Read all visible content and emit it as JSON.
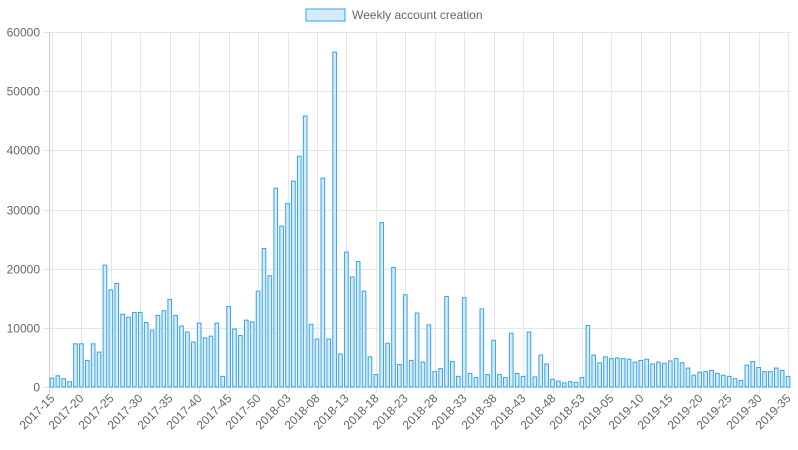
{
  "chart_data": {
    "type": "bar",
    "legend": {
      "label": "Weekly account creation",
      "position": "top"
    },
    "ylim": [
      0,
      60000
    ],
    "y_ticks": [
      0,
      10000,
      20000,
      30000,
      40000,
      50000,
      60000
    ],
    "grid": true,
    "colors": {
      "bar_fill": "#d6ecfa",
      "bar_stroke": "#36a2eb",
      "grid": "#e6e6e6",
      "axis_text": "#666666"
    },
    "categories": [
      "2017-15",
      "2017-16",
      "2017-17",
      "2017-18",
      "2017-19",
      "2017-20",
      "2017-21",
      "2017-22",
      "2017-23",
      "2017-24",
      "2017-25",
      "2017-26",
      "2017-27",
      "2017-28",
      "2017-29",
      "2017-30",
      "2017-31",
      "2017-32",
      "2017-33",
      "2017-34",
      "2017-35",
      "2017-36",
      "2017-37",
      "2017-38",
      "2017-39",
      "2017-40",
      "2017-41",
      "2017-42",
      "2017-43",
      "2017-44",
      "2017-45",
      "2017-46",
      "2017-47",
      "2017-48",
      "2017-49",
      "2017-50",
      "2017-51",
      "2017-52",
      "2018-01",
      "2018-02",
      "2018-03",
      "2018-04",
      "2018-05",
      "2018-06",
      "2018-07",
      "2018-08",
      "2018-09",
      "2018-10",
      "2018-11",
      "2018-12",
      "2018-13",
      "2018-14",
      "2018-15",
      "2018-16",
      "2018-17",
      "2018-18",
      "2018-19",
      "2018-20",
      "2018-21",
      "2018-22",
      "2018-23",
      "2018-24",
      "2018-25",
      "2018-26",
      "2018-27",
      "2018-28",
      "2018-29",
      "2018-30",
      "2018-31",
      "2018-32",
      "2018-33",
      "2018-34",
      "2018-35",
      "2018-36",
      "2018-37",
      "2018-38",
      "2018-39",
      "2018-40",
      "2018-41",
      "2018-42",
      "2018-43",
      "2018-44",
      "2018-45",
      "2018-46",
      "2018-47",
      "2018-48",
      "2018-49",
      "2018-50",
      "2018-51",
      "2018-52",
      "2018-53",
      "2019-01",
      "2019-02",
      "2019-03",
      "2019-04",
      "2019-05",
      "2019-06",
      "2019-07",
      "2019-08",
      "2019-09",
      "2019-10",
      "2019-11",
      "2019-12",
      "2019-13",
      "2019-14",
      "2019-15",
      "2019-16",
      "2019-17",
      "2019-18",
      "2019-19",
      "2019-20",
      "2019-21",
      "2019-22",
      "2019-23",
      "2019-24",
      "2019-25",
      "2019-26",
      "2019-27",
      "2019-28",
      "2019-29",
      "2019-30",
      "2019-31",
      "2019-32",
      "2019-33",
      "2019-34",
      "2019-35"
    ],
    "series": [
      {
        "name": "Weekly account creation",
        "values": [
          1500,
          1900,
          1400,
          900,
          7300,
          7300,
          4500,
          7300,
          5900,
          20600,
          16400,
          17500,
          12300,
          11800,
          12600,
          12600,
          10900,
          9600,
          12100,
          12900,
          14800,
          12100,
          10300,
          9300,
          7600,
          10800,
          8300,
          8600,
          10800,
          1800,
          13600,
          9800,
          8700,
          11300,
          11000,
          16200,
          23400,
          18800,
          33600,
          27200,
          31000,
          34800,
          39000,
          45800,
          10600,
          8100,
          35300,
          8100,
          56600,
          5600,
          22800,
          18600,
          21200,
          16200,
          5100,
          2100,
          27800,
          7400,
          20200,
          3800,
          15600,
          4500,
          12500,
          4200,
          10500,
          2600,
          3100,
          15300,
          4300,
          1800,
          15100,
          2300,
          1600,
          13200,
          2100,
          7900,
          2100,
          1600,
          9100,
          2300,
          1800,
          9300,
          1700,
          5400,
          3900,
          1300,
          1000,
          700,
          900,
          800,
          1600,
          10400,
          5400,
          4100,
          5100,
          4800,
          4900,
          4800,
          4700,
          4200,
          4500,
          4700,
          3900,
          4200,
          4000,
          4400,
          4800,
          4100,
          3200,
          2000,
          2500,
          2600,
          2800,
          2300,
          2000,
          1800,
          1400,
          1100,
          3700,
          4300,
          3300,
          2600,
          2600,
          3200,
          2800,
          1800
        ]
      }
    ],
    "x_tick_labels": [
      "2017-15",
      "2017-20",
      "2017-25",
      "2017-30",
      "2017-35",
      "2017-40",
      "2017-45",
      "2017-50",
      "2018-03",
      "2018-08",
      "2018-13",
      "2018-18",
      "2018-23",
      "2018-28",
      "2018-33",
      "2018-38",
      "2018-43",
      "2018-48",
      "2018-53",
      "2019-05",
      "2019-10",
      "2019-15",
      "2019-20",
      "2019-25",
      "2019-30",
      "2019-35"
    ]
  }
}
